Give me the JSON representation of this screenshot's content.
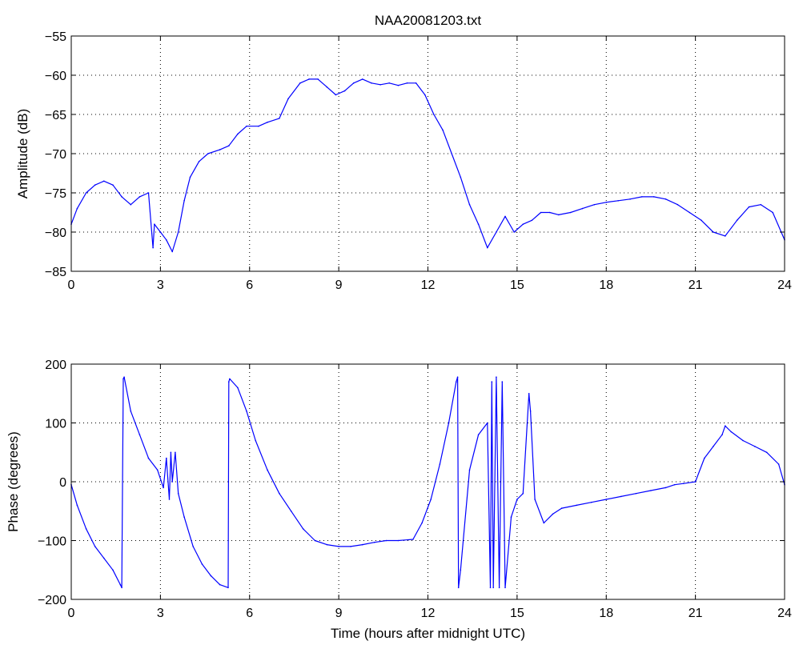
{
  "chart_data": [
    {
      "type": "line",
      "title": "NAA20081203.txt",
      "xlabel": "",
      "ylabel": "Amplitude (dB)",
      "xlim": [
        0,
        24
      ],
      "ylim": [
        -85,
        -55
      ],
      "xticks": [
        0,
        3,
        6,
        9,
        12,
        15,
        18,
        21,
        24
      ],
      "yticks": [
        -85,
        -80,
        -75,
        -70,
        -65,
        -60,
        -55
      ],
      "xtick_labels": [
        "0",
        "3",
        "6",
        "9",
        "12",
        "15",
        "18",
        "21",
        "24"
      ],
      "ytick_labels": [
        "−85",
        "−80",
        "−75",
        "−70",
        "−65",
        "−60",
        "−55"
      ],
      "grid": true,
      "color": "#0000ff",
      "series": [
        {
          "x": [
            0,
            0.2,
            0.5,
            0.8,
            1.1,
            1.4,
            1.7,
            2.0,
            2.3,
            2.6,
            2.75,
            2.8,
            3.0,
            3.2,
            3.4,
            3.6,
            3.8,
            4.0,
            4.3,
            4.6,
            5.0,
            5.3,
            5.6,
            5.9,
            6.3,
            6.6,
            7.0,
            7.3,
            7.7,
            8.0,
            8.3,
            8.6,
            8.9,
            9.2,
            9.5,
            9.8,
            10.1,
            10.4,
            10.7,
            11.0,
            11.3,
            11.6,
            11.9,
            12.2,
            12.5,
            12.8,
            13.1,
            13.4,
            13.7,
            14.0,
            14.3,
            14.6,
            14.9,
            15.2,
            15.5,
            15.8,
            16.1,
            16.4,
            16.8,
            17.2,
            17.6,
            18.0,
            18.4,
            18.8,
            19.2,
            19.6,
            20.0,
            20.4,
            20.8,
            21.2,
            21.6,
            22.0,
            22.4,
            22.8,
            23.2,
            23.6,
            24.0
          ],
          "values": [
            -79,
            -77,
            -75,
            -74,
            -73.5,
            -74,
            -75.5,
            -76.5,
            -75.5,
            -75,
            -82,
            -79,
            -80,
            -81,
            -82.5,
            -80,
            -76,
            -73,
            -71,
            -70,
            -69.5,
            -69,
            -67.5,
            -66.5,
            -66.5,
            -66,
            -65.5,
            -63,
            -61,
            -60.5,
            -60.5,
            -61.5,
            -62.5,
            -62,
            -61,
            -60.5,
            -61,
            -61.2,
            -61,
            -61.3,
            -61,
            -61,
            -62.5,
            -65,
            -67,
            -70,
            -73,
            -76.5,
            -79,
            -82,
            -80,
            -78,
            -80,
            -79,
            -78.5,
            -77.5,
            -77.5,
            -77.8,
            -77.5,
            -77,
            -76.5,
            -76.2,
            -76,
            -75.8,
            -75.5,
            -75.5,
            -75.8,
            -76.5,
            -77.5,
            -78.5,
            -80,
            -80.5,
            -78.5,
            -76.8,
            -76.5,
            -77.5,
            -81
          ]
        }
      ]
    },
    {
      "type": "line",
      "title": "",
      "xlabel": "Time (hours after midnight UTC)",
      "ylabel": "Phase (degrees)",
      "xlim": [
        0,
        24
      ],
      "ylim": [
        -200,
        200
      ],
      "xticks": [
        0,
        3,
        6,
        9,
        12,
        15,
        18,
        21,
        24
      ],
      "yticks": [
        -200,
        -100,
        0,
        100,
        200
      ],
      "xtick_labels": [
        "0",
        "3",
        "6",
        "9",
        "12",
        "15",
        "18",
        "21",
        "24"
      ],
      "ytick_labels": [
        "−200",
        "−100",
        "0",
        "100",
        "200"
      ],
      "grid": true,
      "color": "#0000ff",
      "series": [
        {
          "x": [
            0,
            0.2,
            0.5,
            0.8,
            1.1,
            1.4,
            1.65,
            1.7,
            1.75,
            1.78,
            2.0,
            2.3,
            2.6,
            2.9,
            3.1,
            3.2,
            3.3,
            3.35,
            3.4,
            3.5,
            3.6,
            3.8,
            4.1,
            4.4,
            4.7,
            5.0,
            5.28,
            5.3,
            5.33,
            5.6,
            5.9,
            6.2,
            6.6,
            7.0,
            7.4,
            7.8,
            8.2,
            8.6,
            9.0,
            9.4,
            9.8,
            10.2,
            10.6,
            11.0,
            11.5,
            11.8,
            12.1,
            12.4,
            12.7,
            12.95,
            13.0,
            13.03,
            13.1,
            13.4,
            13.7,
            14.0,
            14.1,
            14.15,
            14.2,
            14.3,
            14.4,
            14.5,
            14.6,
            14.8,
            15.0,
            15.2,
            15.4,
            15.45,
            15.6,
            15.9,
            16.2,
            16.5,
            17.0,
            17.5,
            18.0,
            18.5,
            19.0,
            19.5,
            20.0,
            20.3,
            20.6,
            21.0,
            21.3,
            21.6,
            21.9,
            22.0,
            22.2,
            22.6,
            23.0,
            23.4,
            23.8,
            24.0
          ],
          "values": [
            -5,
            -40,
            -80,
            -110,
            -130,
            -150,
            -175,
            -180,
            175,
            178,
            120,
            80,
            40,
            20,
            -10,
            40,
            -30,
            50,
            0,
            50,
            -20,
            -60,
            -110,
            -140,
            -160,
            -175,
            -180,
            170,
            175,
            160,
            120,
            70,
            20,
            -20,
            -50,
            -80,
            -100,
            -107,
            -110,
            -110,
            -107,
            -103,
            -100,
            -100,
            -98,
            -70,
            -30,
            30,
            100,
            170,
            178,
            -180,
            -150,
            20,
            80,
            100,
            -180,
            170,
            -180,
            178,
            -180,
            170,
            -180,
            -60,
            -30,
            -20,
            150,
            120,
            -30,
            -70,
            -55,
            -45,
            -40,
            -35,
            -30,
            -25,
            -20,
            -15,
            -10,
            -5,
            -3,
            0,
            40,
            60,
            80,
            95,
            85,
            70,
            60,
            50,
            30,
            -5
          ]
        }
      ]
    }
  ]
}
